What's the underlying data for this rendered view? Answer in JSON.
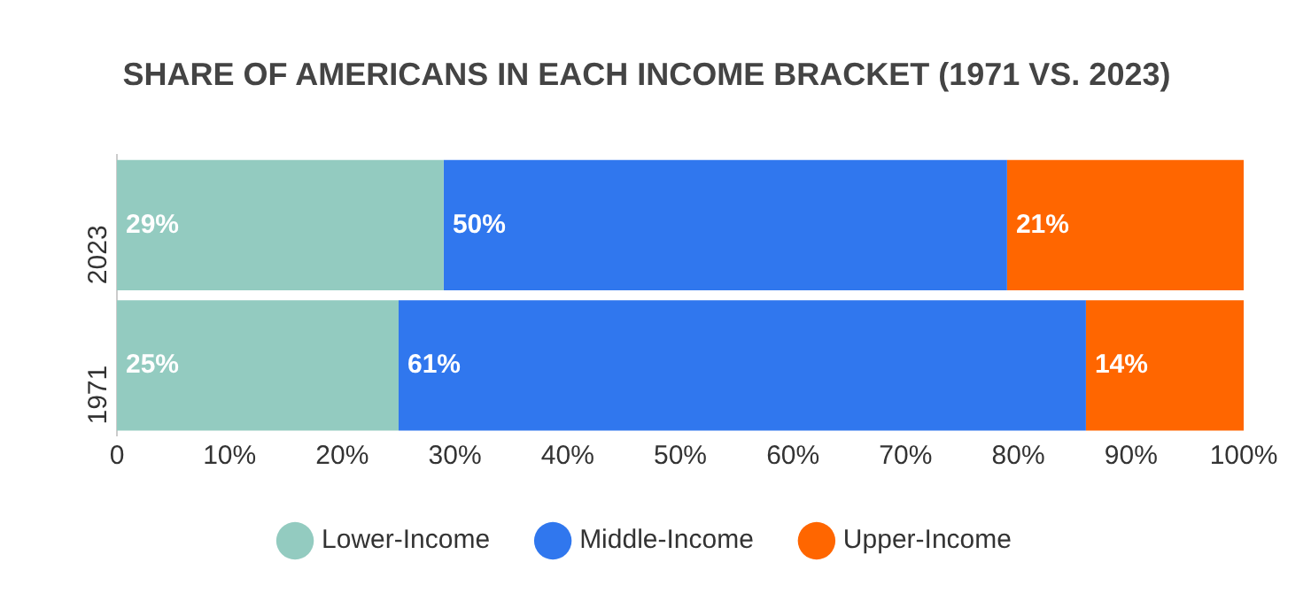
{
  "chart_data": {
    "type": "bar",
    "orientation": "horizontal",
    "stacked": true,
    "title": "SHARE OF AMERICANS IN EACH INCOME BRACKET (1971 VS. 2023)",
    "categories": [
      "2023",
      "1971"
    ],
    "series": [
      {
        "name": "Lower-Income",
        "color": "#93cbc0",
        "values": [
          29,
          25
        ],
        "value_labels": [
          "29%",
          "25%"
        ]
      },
      {
        "name": "Middle-Income",
        "color": "#3077ee",
        "values": [
          50,
          61
        ],
        "value_labels": [
          "50%",
          "61%"
        ]
      },
      {
        "name": "Upper-Income",
        "color": "#ff6600",
        "values": [
          21,
          14
        ],
        "value_labels": [
          "21%",
          "14%"
        ]
      }
    ],
    "xlim": [
      0,
      100
    ],
    "xticks": [
      {
        "value": 0,
        "label": "0"
      },
      {
        "value": 10,
        "label": "10%"
      },
      {
        "value": 20,
        "label": "20%"
      },
      {
        "value": 30,
        "label": "30%"
      },
      {
        "value": 40,
        "label": "40%"
      },
      {
        "value": 50,
        "label": "50%"
      },
      {
        "value": 60,
        "label": "60%"
      },
      {
        "value": 70,
        "label": "70%"
      },
      {
        "value": 80,
        "label": "80%"
      },
      {
        "value": 90,
        "label": "90%"
      },
      {
        "value": 100,
        "label": "100%"
      }
    ],
    "grid": false,
    "legend": "bottom",
    "marker": "circle"
  }
}
